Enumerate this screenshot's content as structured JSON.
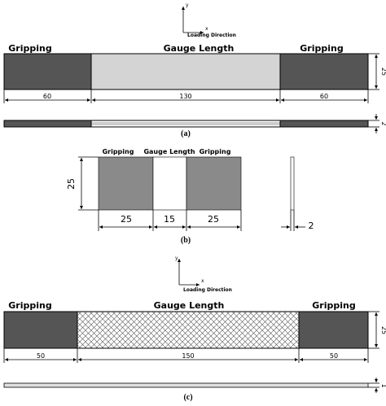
{
  "panels": [
    {
      "axis": {
        "y": "y",
        "x": "x",
        "direction": "Loading Direction"
      },
      "labels": [
        "Gripping",
        "Gauge Length",
        "Gripping"
      ],
      "dimensions": [
        "60",
        "130",
        "60"
      ],
      "height": "25",
      "thickness": "2",
      "caption": "(a)"
    },
    {
      "labels": [
        "Gripping",
        "Gauge Length",
        "Gripping"
      ],
      "dimensions": [
        "25",
        "15",
        "25"
      ],
      "height": "25",
      "thickness": "2",
      "caption": "(b)"
    },
    {
      "axis": {
        "y": "y",
        "x": "x",
        "direction": "Loading Direction"
      },
      "labels": [
        "Gripping",
        "Gauge Length",
        "Gripping"
      ],
      "dimensions": [
        "50",
        "150",
        "50"
      ],
      "height": "25",
      "thickness": "1",
      "caption": "(c)"
    }
  ]
}
